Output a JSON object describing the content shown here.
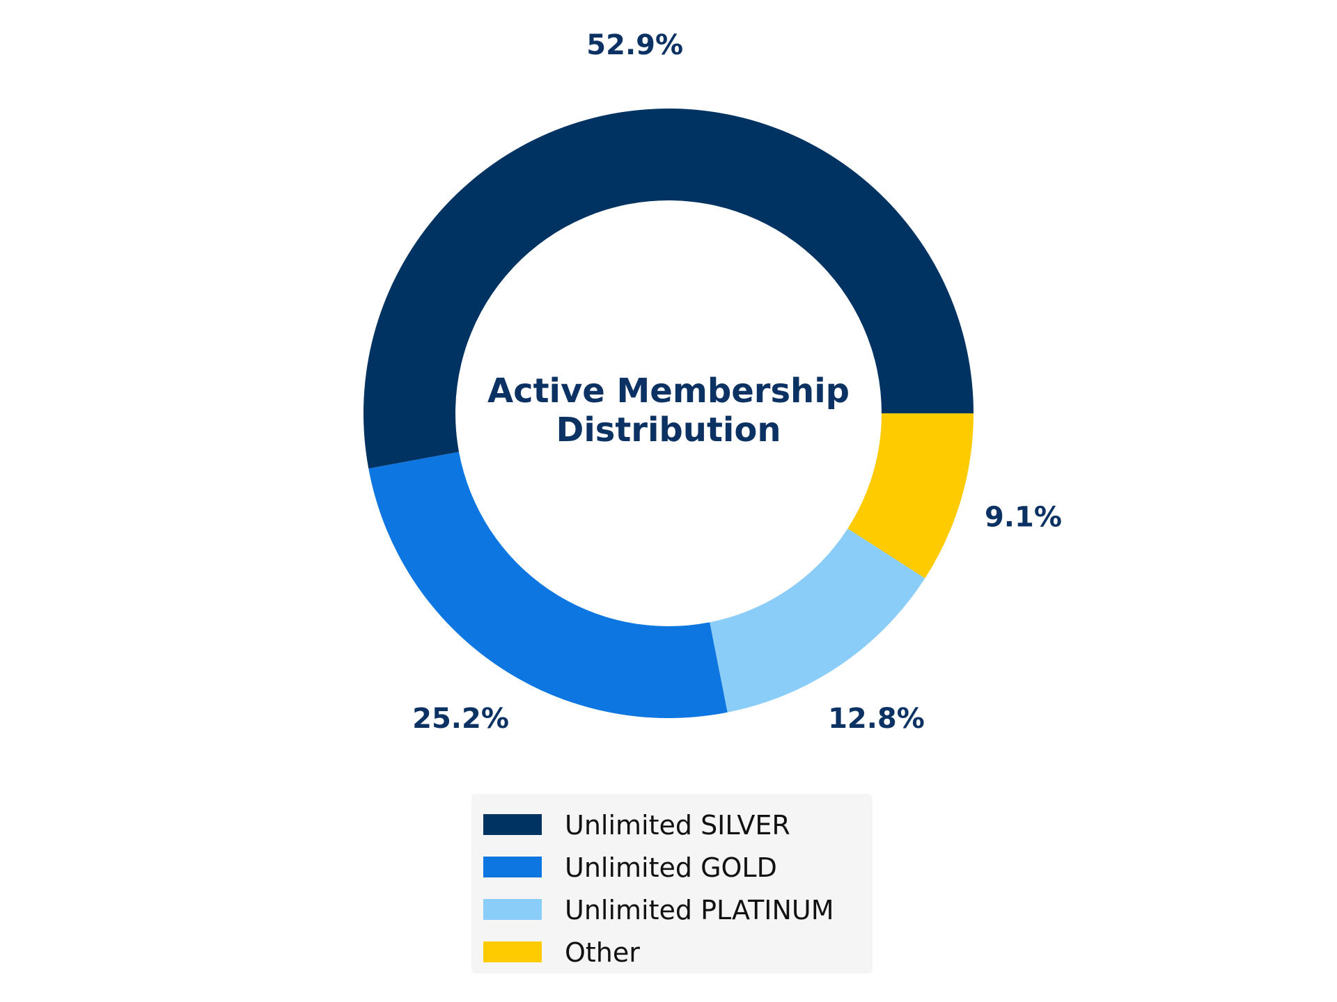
{
  "chart_data": {
    "type": "pie",
    "variant": "donut",
    "title_lines": [
      "Active Membership",
      "Distribution"
    ],
    "slices": [
      {
        "name": "Unlimited SILVER",
        "value": 52.9,
        "label": "52.9%",
        "color": "#003262"
      },
      {
        "name": "Unlimited GOLD",
        "value": 25.2,
        "label": "25.2%",
        "color": "#0d76e0"
      },
      {
        "name": "Unlimited PLATINUM",
        "value": 12.8,
        "label": "12.8%",
        "color": "#8acdf8"
      },
      {
        "name": "Other",
        "value": 9.1,
        "label": "9.1%",
        "color": "#fdcb00"
      }
    ],
    "start_angle_deg": 0,
    "direction": "counterclockwise",
    "label_color": "#0b3263",
    "title_color": "#0b3263",
    "legend_position": "bottom-center"
  }
}
